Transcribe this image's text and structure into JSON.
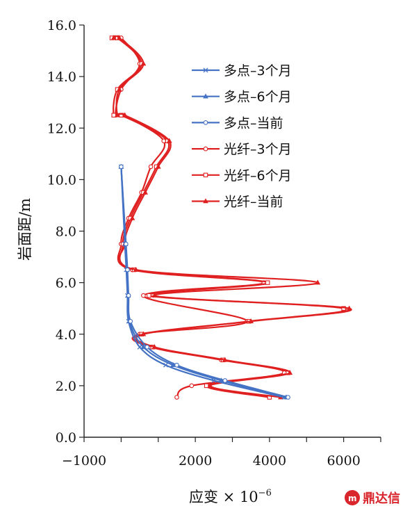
{
  "chart_data": {
    "type": "line",
    "xlabel": "应变 × 10",
    "xlabel_exp": "−6",
    "ylabel": "岩面距/m",
    "xlim": [
      -1000,
      7000
    ],
    "ylim": [
      0,
      16
    ],
    "x_ticks": [
      {
        "v": -1000,
        "label": "−1000"
      },
      {
        "v": 2000,
        "label": "2000"
      },
      {
        "v": 4000,
        "label": "4000"
      },
      {
        "v": 6000,
        "label": "6000"
      }
    ],
    "y_ticks": [
      {
        "v": 0,
        "label": "0.0"
      },
      {
        "v": 2,
        "label": "2.0"
      },
      {
        "v": 4,
        "label": "4.0"
      },
      {
        "v": 6,
        "label": "6.0"
      },
      {
        "v": 8,
        "label": "8.0"
      },
      {
        "v": 10,
        "label": "10.0"
      },
      {
        "v": 12,
        "label": "12.0"
      },
      {
        "v": 14,
        "label": "14.0"
      },
      {
        "v": 16,
        "label": "16.0"
      }
    ],
    "legend_position": "top-right",
    "series": [
      {
        "name": "多点–3个月",
        "color": "#4472C4",
        "marker": "x",
        "points": [
          [
            0,
            10.5
          ],
          [
            100,
            7.5
          ],
          [
            140,
            6.5
          ],
          [
            170,
            5.5
          ],
          [
            200,
            4.5
          ],
          [
            500,
            3.5
          ],
          [
            1200,
            2.8
          ],
          [
            2500,
            2.2
          ],
          [
            4400,
            1.55
          ]
        ]
      },
      {
        "name": "多点–6个月",
        "color": "#4472C4",
        "marker": "triangle",
        "points": [
          [
            0,
            10.5
          ],
          [
            120,
            7.5
          ],
          [
            160,
            6.5
          ],
          [
            190,
            5.5
          ],
          [
            220,
            4.5
          ],
          [
            600,
            3.5
          ],
          [
            1400,
            2.8
          ],
          [
            2700,
            2.2
          ],
          [
            4450,
            1.55
          ]
        ]
      },
      {
        "name": "多点–当前",
        "color": "#4472C4",
        "marker": "circle",
        "points": [
          [
            0,
            10.5
          ],
          [
            130,
            7.5
          ],
          [
            170,
            6.5
          ],
          [
            200,
            5.5
          ],
          [
            250,
            4.5
          ],
          [
            700,
            3.5
          ],
          [
            1500,
            2.8
          ],
          [
            2800,
            2.2
          ],
          [
            4500,
            1.55
          ]
        ]
      },
      {
        "name": "光纤–3个月",
        "color": "#E02020",
        "marker": "circle",
        "points": [
          [
            -150,
            15.5
          ],
          [
            0,
            15.5
          ],
          [
            500,
            14.5
          ],
          [
            0,
            13.5
          ],
          [
            -150,
            12.5
          ],
          [
            50,
            12.5
          ],
          [
            1150,
            11.5
          ],
          [
            800,
            10.5
          ],
          [
            550,
            9.5
          ],
          [
            200,
            8.5
          ],
          [
            0,
            7.5
          ],
          [
            300,
            6.5
          ],
          [
            3850,
            6.0
          ],
          [
            600,
            5.5
          ],
          [
            3400,
            4.5
          ],
          [
            500,
            4.0
          ],
          [
            800,
            3.5
          ],
          [
            2700,
            3.0
          ],
          [
            4400,
            2.5
          ],
          [
            1900,
            2.0
          ],
          [
            1500,
            1.55
          ]
        ]
      },
      {
        "name": "光纤–6个月",
        "color": "#E02020",
        "marker": "square",
        "points": [
          [
            -250,
            15.5
          ],
          [
            -100,
            15.5
          ],
          [
            550,
            14.5
          ],
          [
            -100,
            13.5
          ],
          [
            -200,
            12.5
          ],
          [
            0,
            12.5
          ],
          [
            1250,
            11.5
          ],
          [
            950,
            10.5
          ],
          [
            600,
            9.5
          ],
          [
            250,
            8.5
          ],
          [
            50,
            7.5
          ],
          [
            350,
            6.5
          ],
          [
            3950,
            6.0
          ],
          [
            750,
            5.5
          ],
          [
            6000,
            5.0
          ],
          [
            3450,
            4.5
          ],
          [
            550,
            4.0
          ],
          [
            850,
            3.5
          ],
          [
            2750,
            3.0
          ],
          [
            4500,
            2.5
          ],
          [
            2300,
            2.0
          ],
          [
            4000,
            1.55
          ]
        ]
      },
      {
        "name": "光纤–当前",
        "color": "#E02020",
        "marker": "triangle",
        "points": [
          [
            -200,
            15.5
          ],
          [
            -50,
            15.5
          ],
          [
            600,
            14.5
          ],
          [
            -50,
            13.5
          ],
          [
            -100,
            12.5
          ],
          [
            100,
            12.5
          ],
          [
            1300,
            11.5
          ],
          [
            1000,
            10.5
          ],
          [
            650,
            9.5
          ],
          [
            300,
            8.5
          ],
          [
            100,
            7.5
          ],
          [
            400,
            6.5
          ],
          [
            5300,
            6.0
          ],
          [
            900,
            5.5
          ],
          [
            6150,
            5.0
          ],
          [
            3500,
            4.5
          ],
          [
            600,
            4.0
          ],
          [
            900,
            3.5
          ],
          [
            2800,
            3.0
          ],
          [
            4550,
            2.5
          ],
          [
            2400,
            2.0
          ],
          [
            4300,
            1.55
          ]
        ]
      }
    ]
  },
  "watermark": {
    "text": "鼎达信",
    "color": "#D9262C"
  }
}
